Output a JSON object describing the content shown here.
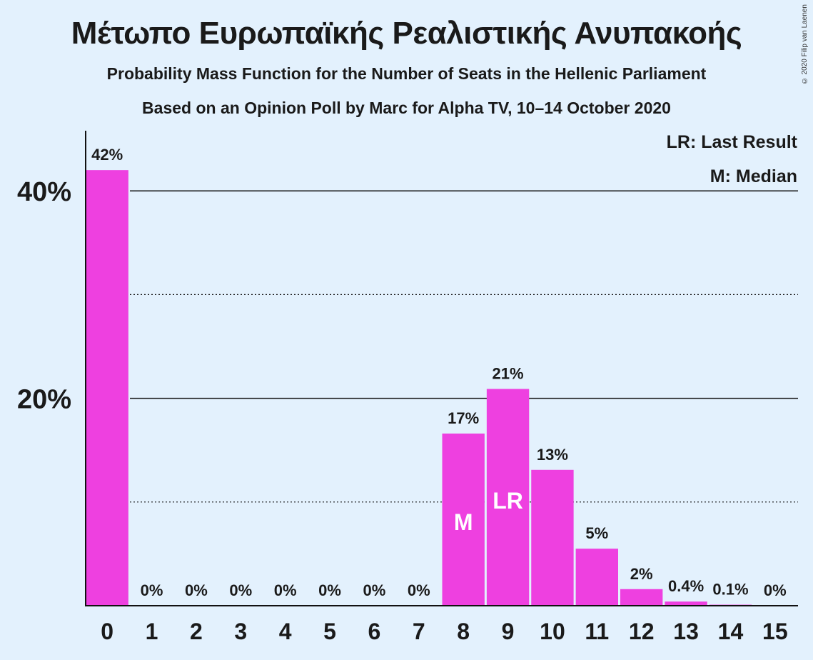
{
  "header": {
    "title": "Μέτωπο Ευρωπαϊκής Ρεαλιστικής Ανυπακοής",
    "subtitle1": "Probability Mass Function for the Number of Seats in the Hellenic Parliament",
    "subtitle2": "Based on an Opinion Poll by Marc for Alpha TV, 10–14 October 2020",
    "copyright": "© 2020 Filip van Laenen"
  },
  "legend": {
    "last_result": "LR: Last Result",
    "median": "M: Median"
  },
  "colors": {
    "bar": "#ee40e0",
    "background": "#e3f1fd"
  },
  "chart_data": {
    "type": "bar",
    "categories": [
      "0",
      "1",
      "2",
      "3",
      "4",
      "5",
      "6",
      "7",
      "8",
      "9",
      "10",
      "11",
      "12",
      "13",
      "14",
      "15"
    ],
    "values": [
      42,
      0,
      0,
      0,
      0,
      0,
      0,
      0,
      16.6,
      20.9,
      13.1,
      5.5,
      1.6,
      0.4,
      0.1,
      0
    ],
    "value_labels": [
      "42%",
      "0%",
      "0%",
      "0%",
      "0%",
      "0%",
      "0%",
      "0%",
      "17%",
      "21%",
      "13%",
      "5%",
      "2%",
      "0.4%",
      "0.1%",
      "0%"
    ],
    "bar_markers": {
      "8": "M",
      "9": "LR"
    },
    "y_ticks": [
      {
        "value": 20,
        "label": "20%"
      },
      {
        "value": 40,
        "label": "40%"
      }
    ],
    "y_minor_gridlines": [
      10,
      30
    ],
    "ylim": [
      0,
      46
    ],
    "grid": true,
    "legend_position": "top-right"
  }
}
